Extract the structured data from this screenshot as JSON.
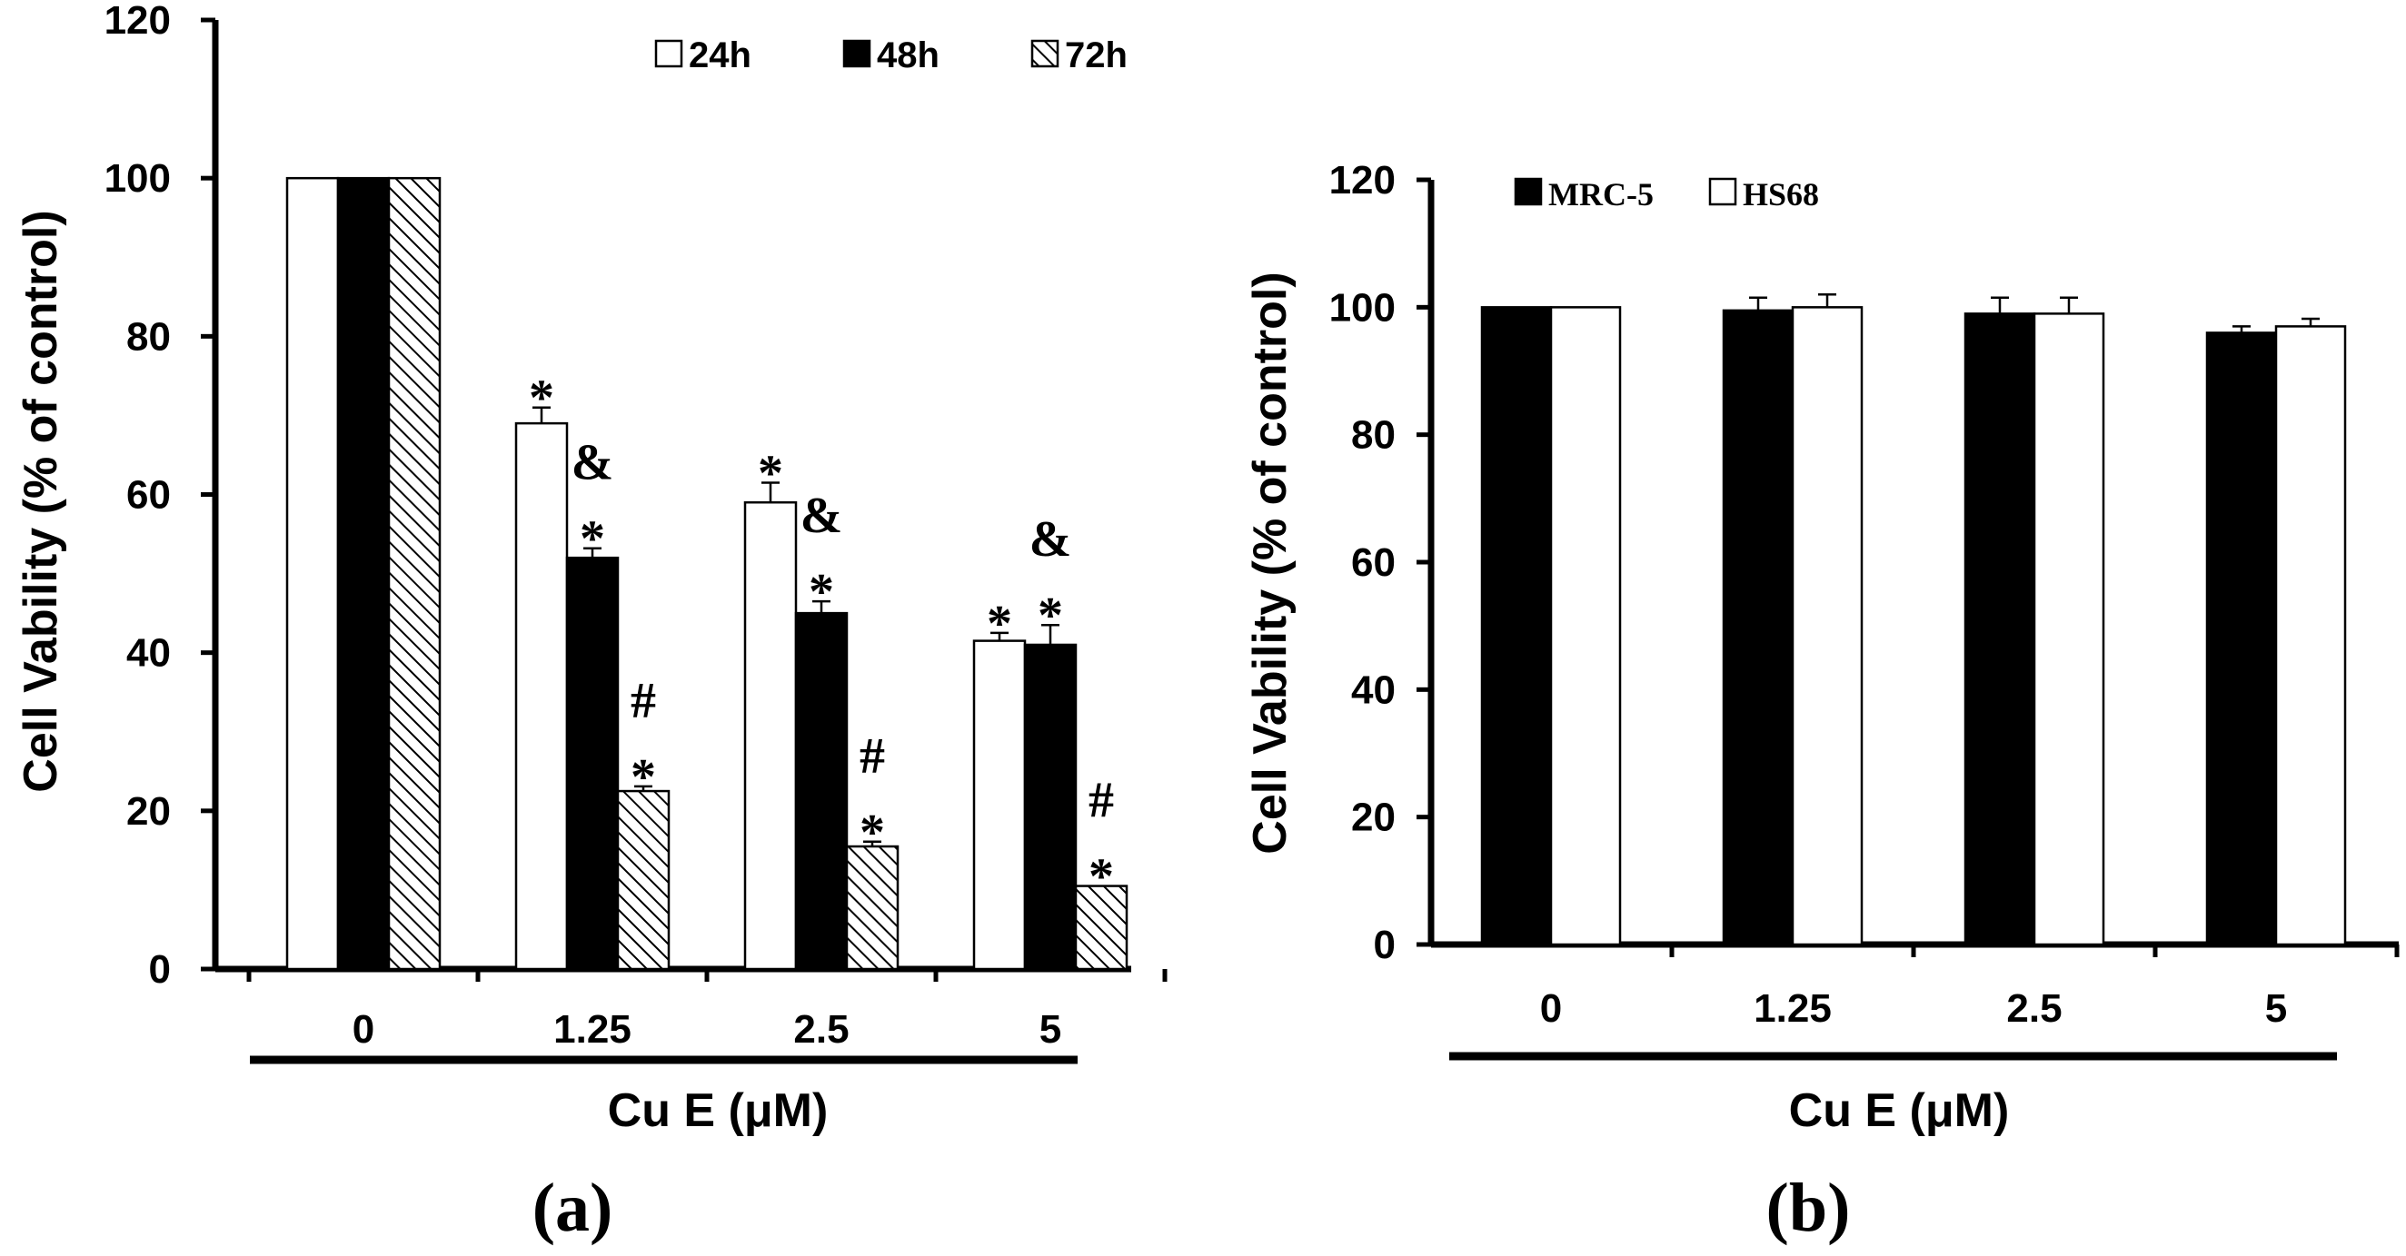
{
  "chart_data": [
    {
      "panel_label": "(a)",
      "type": "bar",
      "categories": [
        "0",
        "1.25",
        "2.5",
        "5"
      ],
      "series": [
        {
          "name": "24h",
          "values": [
            100,
            69,
            59,
            41.5
          ],
          "errors": [
            0,
            2,
            2.5,
            1
          ],
          "fill": "#ffffff"
        },
        {
          "name": "48h",
          "values": [
            100,
            52,
            45,
            41
          ],
          "errors": [
            0,
            1.2,
            1.5,
            2.5
          ],
          "fill": "#000000"
        },
        {
          "name": "72h",
          "values": [
            100,
            22.5,
            15.5,
            10.5
          ],
          "errors": [
            0,
            0.6,
            0.6,
            0
          ],
          "fill": "hatch"
        }
      ],
      "annotations": [
        {
          "category": "1.25",
          "series": "24h",
          "lines": [
            "*"
          ]
        },
        {
          "category": "1.25",
          "series": "48h",
          "lines": [
            "&",
            "*"
          ]
        },
        {
          "category": "1.25",
          "series": "72h",
          "lines": [
            "#",
            "*"
          ]
        },
        {
          "category": "2.5",
          "series": "24h",
          "lines": [
            "*"
          ]
        },
        {
          "category": "2.5",
          "series": "48h",
          "lines": [
            "&",
            "*"
          ]
        },
        {
          "category": "2.5",
          "series": "72h",
          "lines": [
            "#",
            "*"
          ]
        },
        {
          "category": "5",
          "series": "24h",
          "lines": [
            "*"
          ]
        },
        {
          "category": "5",
          "series": "48h",
          "lines": [
            "&",
            "*"
          ]
        },
        {
          "category": "5",
          "series": "72h",
          "lines": [
            "#",
            "*"
          ]
        }
      ],
      "yticks": [
        0,
        20,
        40,
        60,
        80,
        100,
        120
      ],
      "ylim": [
        0,
        120
      ],
      "ylabel": "Cell Vability (% of control)",
      "xlabel": "Cu E (μM)",
      "legend_position": "top-right"
    },
    {
      "panel_label": "(b)",
      "type": "bar",
      "categories": [
        "0",
        "1.25",
        "2.5",
        "5"
      ],
      "series": [
        {
          "name": "MRC-5",
          "values": [
            100,
            99.5,
            99,
            96
          ],
          "errors": [
            0,
            2,
            2.5,
            1
          ],
          "fill": "#000000"
        },
        {
          "name": "HS68",
          "values": [
            100,
            100,
            99,
            97
          ],
          "errors": [
            0,
            2,
            2.5,
            1.2
          ],
          "fill": "#ffffff"
        }
      ],
      "annotations": [],
      "yticks": [
        0,
        20,
        40,
        60,
        80,
        100,
        120
      ],
      "ylim": [
        0,
        120
      ],
      "ylabel": "Cell Vability (% of control)",
      "xlabel": "Cu E (μM)",
      "legend_position": "top-left"
    }
  ]
}
